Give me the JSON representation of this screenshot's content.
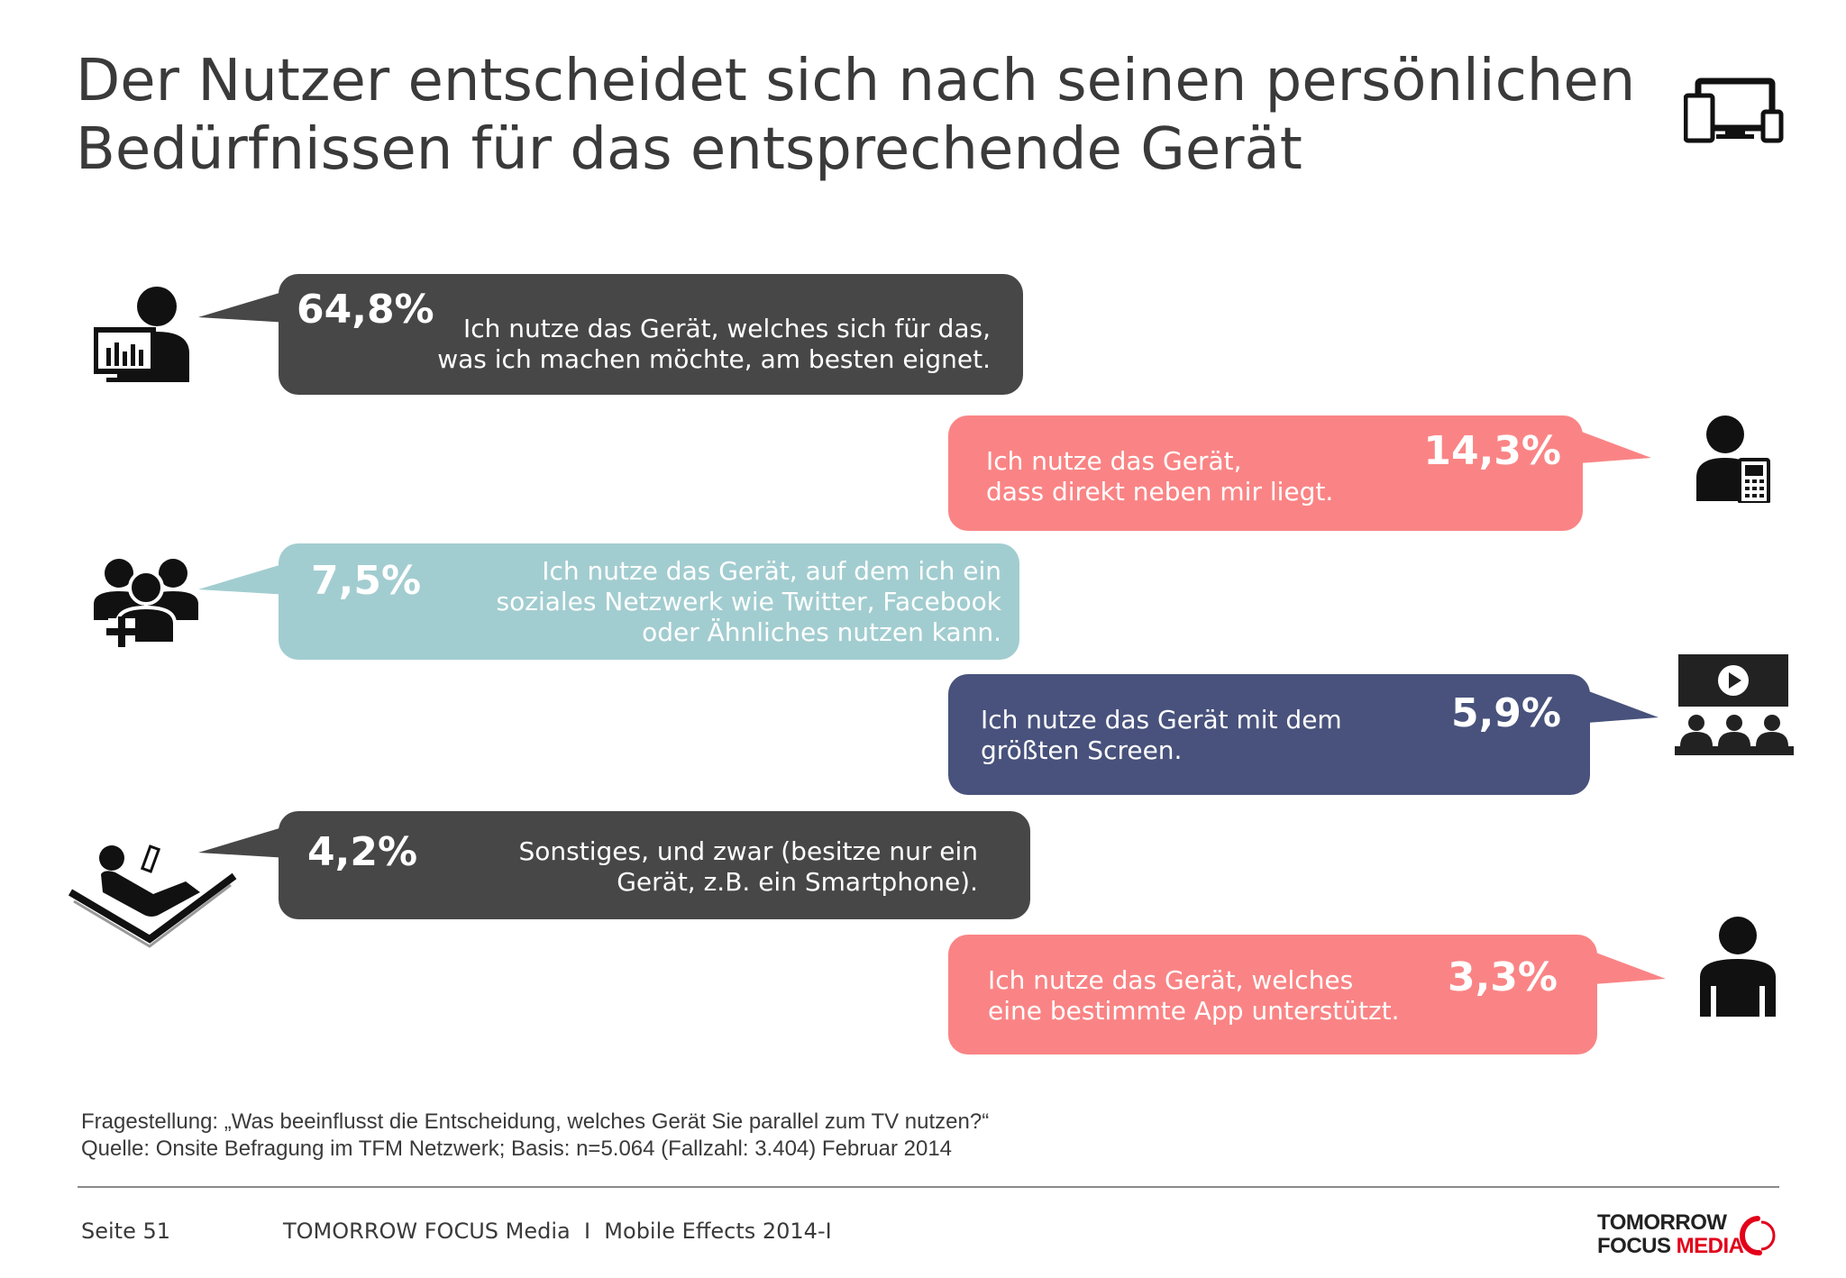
{
  "title": {
    "line1": "Der Nutzer entscheidet sich nach seinen persönlichen",
    "line2": "Bedürfnissen für das entsprechende Gerät"
  },
  "items": [
    {
      "percent": "64,8%",
      "lines": [
        "Ich nutze das Gerät, welches sich für das,",
        "was ich machen möchte, am besten eignet."
      ],
      "color": "#474747",
      "icon": "person-monitor-chart-icon"
    },
    {
      "percent": "14,3%",
      "lines": [
        "Ich nutze das Gerät,",
        "dass direkt neben mir liegt."
      ],
      "color": "#fa8485",
      "icon": "person-phone-icon"
    },
    {
      "percent": "7,5%",
      "lines": [
        "Ich nutze das Gerät, auf dem ich ein",
        "soziales Netzwerk wie Twitter, Facebook",
        "oder Ähnliches nutzen kann."
      ],
      "color": "#a2cdd0",
      "icon": "social-group-add-icon"
    },
    {
      "percent": "5,9%",
      "lines": [
        "Ich nutze das Gerät mit dem",
        "größten Screen."
      ],
      "color": "#48527c",
      "icon": "cinema-screen-audience-icon"
    },
    {
      "percent": "4,2%",
      "lines": [
        "Sonstiges, und zwar (besitze nur ein",
        "Gerät, z.B. ein Smartphone)."
      ],
      "color": "#474747",
      "icon": "person-reclining-phone-icon"
    },
    {
      "percent": "3,3%",
      "lines": [
        "Ich nutze das Gerät, welches",
        "eine bestimmte App unterstützt."
      ],
      "color": "#fa8485",
      "icon": "person-icon"
    }
  ],
  "footnote": {
    "question": "Fragestellung: „Was beeinflusst die Entscheidung, welches Gerät Sie parallel zum TV nutzen?“",
    "source": "Quelle: Onsite Befragung im TFM Netzwerk; Basis: n=5.064 (Fallzahl: 3.404) Februar 2014"
  },
  "footer": {
    "page": "Seite 51",
    "publication": "TOMORROW FOCUS Media  I  Mobile Effects 2014-I"
  },
  "logo": {
    "line1": "TOMORROW",
    "line2a": "FOCUS ",
    "line2b": "MEDIA"
  },
  "header_icon": "multi-device-icon"
}
